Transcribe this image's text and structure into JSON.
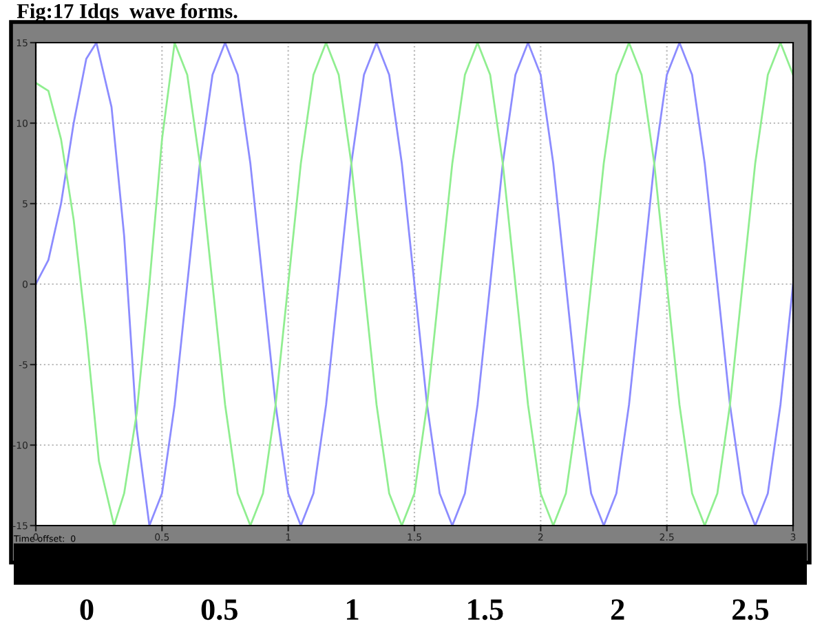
{
  "chart_data": {
    "type": "line",
    "title": "Fig:17 Idqs  wave forms.",
    "annotations": [
      "Time offset:  0",
      "0",
      "0.5",
      "1",
      "1.5",
      "2",
      "2.5"
    ],
    "xlim": [
      0,
      3
    ],
    "xticks": [
      0,
      0.5,
      1,
      1.5,
      2,
      2.5,
      3
    ],
    "ylim": [
      -15,
      15
    ],
    "yticks": [
      -15,
      -10,
      -5,
      0,
      5,
      10,
      15
    ],
    "grid": true,
    "legend": false,
    "marker": "none",
    "line_style": "solid",
    "series": [
      {
        "color": "#8c8cff",
        "x": [
          0,
          0.05,
          0.1,
          0.15,
          0.2,
          0.24,
          0.3,
          0.35,
          0.4,
          0.45,
          0.5,
          0.55,
          0.6,
          0.65,
          0.7,
          0.75,
          0.8,
          0.85,
          0.9,
          0.95,
          1.0,
          1.05,
          1.1,
          1.15,
          1.2,
          1.25,
          1.3,
          1.35,
          1.4,
          1.45,
          1.5,
          1.55,
          1.6,
          1.65,
          1.7,
          1.75,
          1.8,
          1.85,
          1.9,
          1.95,
          2.0,
          2.05,
          2.1,
          2.15,
          2.2,
          2.25,
          2.3,
          2.35,
          2.4,
          2.45,
          2.5,
          2.55,
          2.6,
          2.65,
          2.7,
          2.75,
          2.8,
          2.85,
          2.9,
          2.95,
          3.0
        ],
        "values": [
          0,
          1.5,
          5,
          10,
          14,
          15,
          11,
          3,
          -9,
          -15,
          -13,
          -7.5,
          0,
          7.5,
          13,
          15,
          13,
          7.5,
          0,
          -7.5,
          -13,
          -15,
          -13,
          -7.5,
          0,
          7.5,
          13,
          15,
          13,
          7.5,
          0,
          -7.5,
          -13,
          -15,
          -13,
          -7.5,
          0,
          7.5,
          13,
          15,
          13,
          7.5,
          0,
          -7.5,
          -13,
          -15,
          -13,
          -7.5,
          0,
          7.5,
          13,
          15,
          13,
          7.5,
          0,
          -7.5,
          -13,
          -15,
          -13,
          -7.5,
          0
        ]
      },
      {
        "color": "#90ee90",
        "x": [
          0,
          0.05,
          0.1,
          0.15,
          0.2,
          0.25,
          0.31,
          0.35,
          0.4,
          0.45,
          0.5,
          0.55,
          0.6,
          0.65,
          0.7,
          0.75,
          0.8,
          0.85,
          0.9,
          0.95,
          1.0,
          1.05,
          1.1,
          1.15,
          1.2,
          1.25,
          1.3,
          1.35,
          1.4,
          1.45,
          1.5,
          1.55,
          1.6,
          1.65,
          1.7,
          1.75,
          1.8,
          1.85,
          1.9,
          1.95,
          2.0,
          2.05,
          2.1,
          2.15,
          2.2,
          2.25,
          2.3,
          2.35,
          2.4,
          2.45,
          2.5,
          2.55,
          2.6,
          2.65,
          2.7,
          2.75,
          2.8,
          2.85,
          2.9,
          2.95,
          3.0
        ],
        "values": [
          12.5,
          12,
          9,
          4,
          -3,
          -11,
          -15,
          -13,
          -8,
          0,
          9,
          15,
          13,
          7.5,
          0,
          -7.5,
          -13,
          -15,
          -13,
          -7.5,
          0,
          7.5,
          13,
          15,
          13,
          7.5,
          0,
          -7.5,
          -13,
          -15,
          -13,
          -7.5,
          0,
          7.5,
          13,
          15,
          13,
          7.5,
          0,
          -7.5,
          -13,
          -15,
          -13,
          -7.5,
          0,
          7.5,
          13,
          15,
          13,
          7.5,
          0,
          -7.5,
          -13,
          -15,
          -13,
          -7.5,
          0,
          7.5,
          13,
          15,
          13
        ]
      }
    ]
  }
}
